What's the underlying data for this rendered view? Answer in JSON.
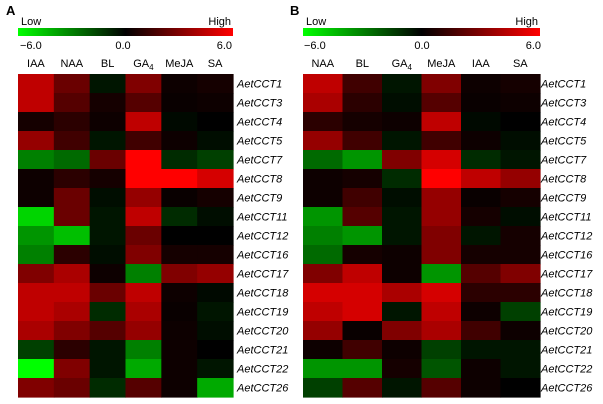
{
  "chart_data": [
    {
      "type": "heatmap",
      "panel": "A",
      "scale": {
        "low_label": "Low",
        "high_label": "High",
        "min": -6.0,
        "mid": 0.0,
        "max": 6.0,
        "min_label": "−6.0",
        "mid_label": "0.0",
        "max_label": "6.0",
        "colors": {
          "low": "#00ff00",
          "mid": "#000000",
          "high": "#ff0000"
        }
      },
      "columns": [
        {
          "label": "IAA"
        },
        {
          "label": "NAA"
        },
        {
          "label": "BL"
        },
        {
          "label": "GA",
          "sub": "4"
        },
        {
          "label": "MeJA"
        },
        {
          "label": "SA"
        }
      ],
      "rows": [
        "AetCCT1",
        "AetCCT3",
        "AetCCT4",
        "AetCCT5",
        "AetCCT7",
        "AetCCT8",
        "AetCCT9",
        "AetCCT11",
        "AetCCT12",
        "AetCCT16",
        "AetCCT17",
        "AetCCT18",
        "AetCCT19",
        "AetCCT20",
        "AetCCT21",
        "AetCCT22",
        "AetCCT26"
      ],
      "values": [
        [
          4.5,
          2.5,
          -0.5,
          3.0,
          0.3,
          0.5
        ],
        [
          4.5,
          2.0,
          0.5,
          2.0,
          0.2,
          0.3
        ],
        [
          0.5,
          1.0,
          0.3,
          4.5,
          -0.2,
          0.0
        ],
        [
          3.5,
          1.5,
          -0.5,
          1.5,
          0.3,
          -0.3
        ],
        [
          -3.0,
          -2.5,
          2.5,
          6.0,
          -1.0,
          -1.5
        ],
        [
          0.3,
          1.0,
          0.5,
          6.0,
          6.0,
          5.0
        ],
        [
          0.3,
          2.5,
          -0.3,
          3.5,
          0.2,
          0.5
        ],
        [
          -5.0,
          2.5,
          -0.5,
          4.5,
          -1.0,
          -0.3
        ],
        [
          -3.5,
          -4.5,
          -0.5,
          2.5,
          0.0,
          0.0
        ],
        [
          -3.0,
          1.0,
          -0.3,
          3.0,
          0.5,
          0.5
        ],
        [
          3.0,
          4.0,
          0.3,
          -3.0,
          3.0,
          3.5
        ],
        [
          4.5,
          4.5,
          2.5,
          4.5,
          0.3,
          -0.2
        ],
        [
          4.5,
          4.0,
          -1.0,
          4.0,
          0.2,
          -0.5
        ],
        [
          4.0,
          3.0,
          2.0,
          3.5,
          0.3,
          -0.3
        ],
        [
          -1.5,
          1.0,
          -0.5,
          -3.0,
          0.3,
          0.0
        ],
        [
          -6.0,
          3.0,
          -0.5,
          -4.0,
          0.3,
          -0.5
        ],
        [
          3.0,
          2.5,
          -1.0,
          2.0,
          0.3,
          -4.0
        ]
      ]
    },
    {
      "type": "heatmap",
      "panel": "B",
      "scale": {
        "low_label": "Low",
        "high_label": "High",
        "min": -6.0,
        "mid": 0.0,
        "max": 6.0,
        "min_label": "−6.0",
        "mid_label": "0.0",
        "max_label": "6.0",
        "colors": {
          "low": "#00ff00",
          "mid": "#000000",
          "high": "#ff0000"
        }
      },
      "columns": [
        {
          "label": "NAA"
        },
        {
          "label": "BL"
        },
        {
          "label": "GA",
          "sub": "4"
        },
        {
          "label": "MeJA"
        },
        {
          "label": "IAA"
        },
        {
          "label": "SA"
        }
      ],
      "rows": [
        "AetCCT1",
        "AetCCT3",
        "AetCCT4",
        "AetCCT5",
        "AetCCT7",
        "AetCCT8",
        "AetCCT9",
        "AetCCT11",
        "AetCCT12",
        "AetCCT16",
        "AetCCT17",
        "AetCCT18",
        "AetCCT19",
        "AetCCT20",
        "AetCCT21",
        "AetCCT22",
        "AetCCT26"
      ],
      "values": [
        [
          4.5,
          1.5,
          -0.5,
          3.0,
          0.3,
          0.5
        ],
        [
          4.0,
          1.0,
          -0.3,
          2.0,
          0.2,
          0.3
        ],
        [
          1.0,
          0.5,
          0.3,
          4.5,
          -0.2,
          0.0
        ],
        [
          3.5,
          1.5,
          -0.5,
          1.5,
          0.3,
          -0.3
        ],
        [
          -2.5,
          -3.5,
          3.0,
          5.0,
          -1.0,
          -0.5
        ],
        [
          0.3,
          0.5,
          -1.0,
          6.0,
          4.5,
          3.5
        ],
        [
          0.3,
          1.5,
          -0.3,
          3.5,
          0.2,
          0.5
        ],
        [
          -3.5,
          2.0,
          -0.5,
          3.5,
          0.5,
          -0.3
        ],
        [
          -3.0,
          -3.5,
          -0.5,
          3.0,
          -0.5,
          0.5
        ],
        [
          -2.5,
          0.5,
          0.3,
          3.0,
          0.5,
          0.5
        ],
        [
          3.0,
          4.5,
          0.3,
          -3.5,
          2.0,
          3.0
        ],
        [
          5.0,
          5.0,
          4.0,
          5.0,
          1.0,
          1.0
        ],
        [
          4.5,
          5.0,
          -0.5,
          4.5,
          0.3,
          -1.5
        ],
        [
          3.5,
          0.2,
          3.0,
          4.0,
          1.5,
          0.3
        ],
        [
          0.3,
          1.5,
          0.3,
          -1.5,
          -0.5,
          -0.5
        ],
        [
          -3.5,
          -3.5,
          0.5,
          -2.0,
          0.3,
          -0.5
        ],
        [
          -1.5,
          2.0,
          -0.5,
          2.0,
          0.3,
          0.0
        ]
      ]
    }
  ]
}
